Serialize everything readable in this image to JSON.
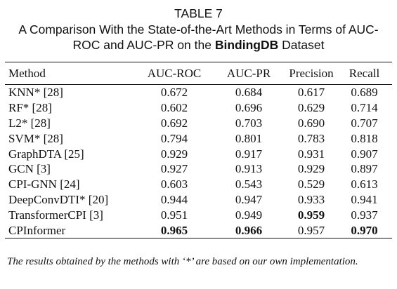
{
  "label": "TABLE 7",
  "caption_before": "A Comparison With the State-of-the-Art Methods in Terms of AUC-ROC and AUC-PR on the",
  "caption_bold": "BindingDB",
  "caption_after": "Dataset",
  "table": {
    "header": [
      "Method",
      "AUC-ROC",
      "AUC-PR",
      "Precision",
      "Recall"
    ],
    "rows": [
      [
        "KNN* [28]",
        "0.672",
        "0.684",
        "0.617",
        "0.689"
      ],
      [
        "RF* [28]",
        "0.602",
        "0.696",
        "0.629",
        "0.714"
      ],
      [
        "L2* [28]",
        "0.692",
        "0.703",
        "0.690",
        "0.707"
      ],
      [
        "SVM* [28]",
        "0.794",
        "0.801",
        "0.783",
        "0.818"
      ],
      [
        "GraphDTA [25]",
        "0.929",
        "0.917",
        "0.931",
        "0.907"
      ],
      [
        "GCN [3]",
        "0.927",
        "0.913",
        "0.929",
        "0.897"
      ],
      [
        "CPI-GNN [24]",
        "0.603",
        "0.543",
        "0.529",
        "0.613"
      ],
      [
        "DeepConvDTI* [20]",
        "0.944",
        "0.947",
        "0.933",
        "0.941"
      ],
      [
        "TransformerCPI [3]",
        "0.951",
        "0.949",
        "0.959",
        "0.937"
      ],
      [
        "CPInformer",
        "0.965",
        "0.966",
        "0.957",
        "0.970"
      ]
    ],
    "bold": [
      [
        8,
        3
      ],
      [
        9,
        1
      ],
      [
        9,
        2
      ],
      [
        9,
        4
      ]
    ]
  },
  "footnote": "The results obtained by the methods with ‘*’ are based on our own implementation."
}
